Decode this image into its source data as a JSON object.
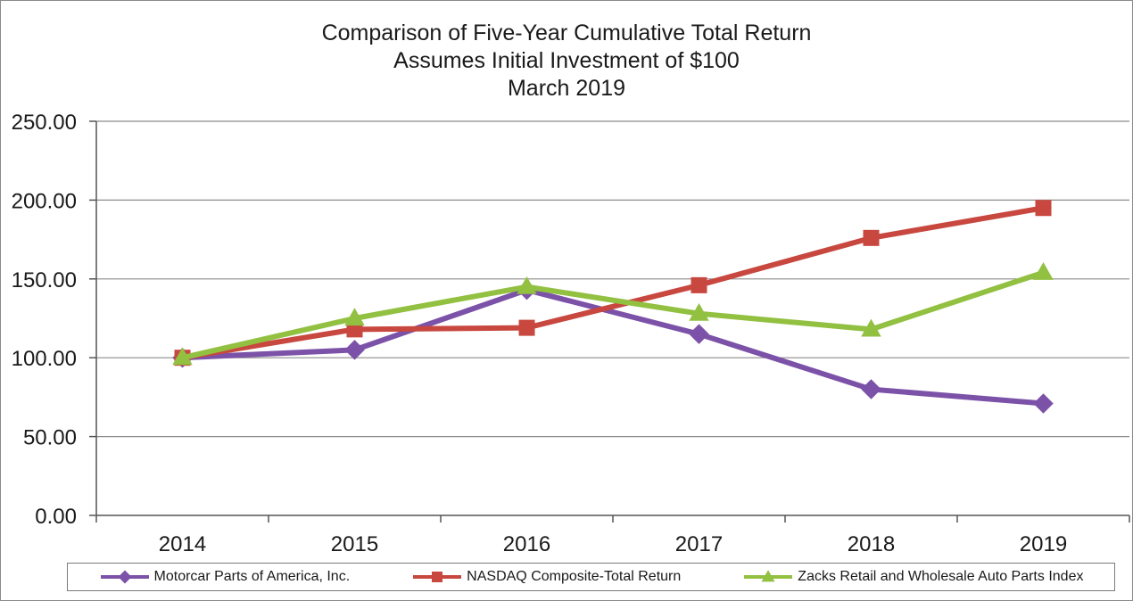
{
  "chart_data": {
    "type": "line",
    "title": [
      "Comparison of Five-Year Cumulative Total Return",
      "Assumes Initial Investment of $100",
      "March 2019"
    ],
    "categories": [
      "2014",
      "2015",
      "2016",
      "2017",
      "2018",
      "2019"
    ],
    "ylim": [
      0,
      250
    ],
    "yticks": [
      "0.00",
      "50.00",
      "100.00",
      "150.00",
      "200.00",
      "250.00"
    ],
    "grid": true,
    "legend_position": "bottom",
    "series": [
      {
        "name": "Motorcar Parts of America, Inc.",
        "color": "#7b52a8",
        "marker": "diamond",
        "values": [
          100,
          105,
          143,
          115,
          80,
          71
        ]
      },
      {
        "name": "NASDAQ Composite-Total Return",
        "color": "#c8473f",
        "marker": "square",
        "values": [
          100,
          118,
          119,
          146,
          176,
          195
        ]
      },
      {
        "name": "Zacks Retail and Wholesale Auto Parts Index",
        "color": "#92c041",
        "marker": "triangle",
        "values": [
          100,
          125,
          145,
          128,
          118,
          154
        ]
      }
    ]
  }
}
